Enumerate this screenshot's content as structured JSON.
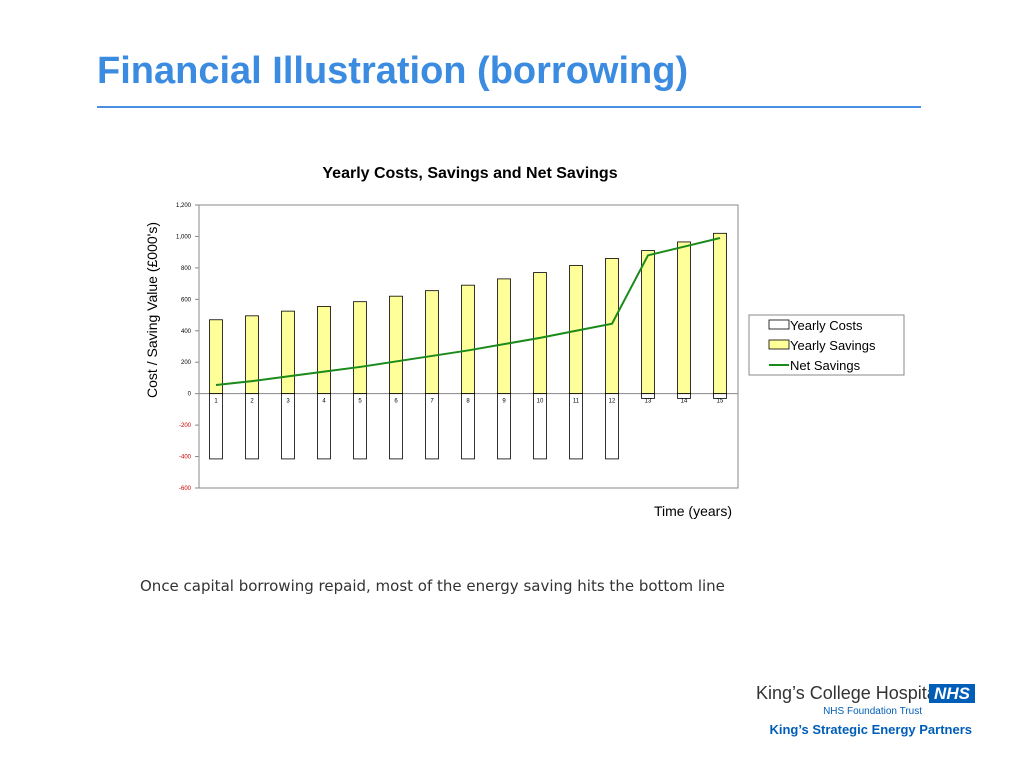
{
  "slide": {
    "title": "Financial Illustration (borrowing)",
    "caption": "Once capital borrowing repaid, most of the energy saving hits the bottom line"
  },
  "logo": {
    "name": "King’s College Hospital",
    "badge": "NHS",
    "trust": "NHS Foundation Trust",
    "partners": "King’s Strategic Energy Partners"
  },
  "colors": {
    "title": "#3b8be0",
    "savings_fill": "#ffff99",
    "costs_fill": "#ffffff",
    "net_line": "#1a8a1a",
    "negative_tick": "#cc0000",
    "logo_blue": "#005eb8"
  },
  "chart_data": {
    "type": "bar",
    "title": "Yearly Costs, Savings and Net Savings",
    "xlabel": "Time (years)",
    "ylabel": "Cost / Saving Value (£000's)",
    "ylim": [
      -600,
      1200
    ],
    "yticks": [
      "-600",
      "-400",
      "-200",
      "0",
      "200",
      "400",
      "600",
      "800",
      "1,000",
      "1,200"
    ],
    "categories": [
      "1",
      "2",
      "3",
      "4",
      "5",
      "6",
      "7",
      "8",
      "9",
      "10",
      "11",
      "12",
      "13",
      "14",
      "15"
    ],
    "legend_position": "right",
    "series": [
      {
        "name": "Yearly Costs",
        "kind": "bar",
        "values": [
          -415,
          -415,
          -415,
          -415,
          -415,
          -415,
          -415,
          -415,
          -415,
          -415,
          -415,
          -415,
          -30,
          -30,
          -30
        ]
      },
      {
        "name": "Yearly Savings",
        "kind": "bar",
        "values": [
          470,
          495,
          525,
          555,
          585,
          620,
          655,
          690,
          730,
          770,
          815,
          860,
          910,
          965,
          1020
        ]
      },
      {
        "name": "Net Savings",
        "kind": "line",
        "values": [
          55,
          80,
          110,
          140,
          170,
          205,
          240,
          275,
          315,
          355,
          400,
          445,
          880,
          935,
          990
        ]
      }
    ]
  }
}
